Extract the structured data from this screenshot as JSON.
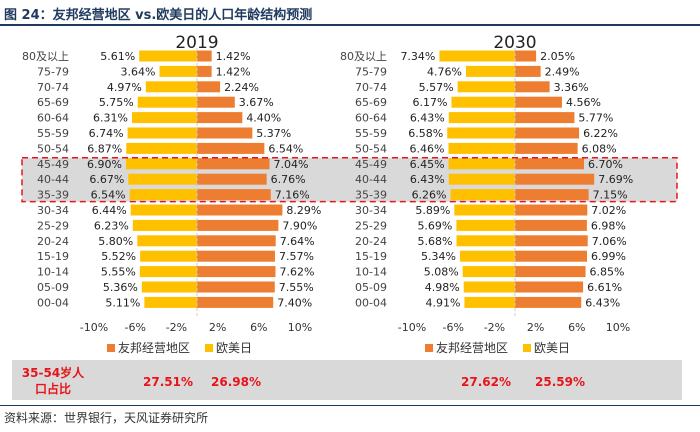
{
  "page": {
    "title": "图 24：友邦经营地区 vs.欧美日的人口年龄结构预测",
    "source": "资料来源：世界银行，天风证券研究所"
  },
  "colors": {
    "aia": "#ed7d31",
    "western": "#ffc000",
    "highlight": "#e8141b",
    "band": "#d9d9d9",
    "title": "#1f3a5f"
  },
  "chart_data": [
    {
      "type": "bar",
      "orientation": "horizontal",
      "title": "2019",
      "categories": [
        "80及以上",
        "75-79",
        "70-74",
        "65-69",
        "60-64",
        "55-59",
        "50-54",
        "45-49",
        "40-44",
        "35-39",
        "30-34",
        "25-29",
        "20-24",
        "15-19",
        "10-14",
        "05-09",
        "00-04"
      ],
      "series": [
        {
          "name": "友邦经营地区",
          "values": [
            1.42,
            1.42,
            2.24,
            3.67,
            4.4,
            5.37,
            6.54,
            7.04,
            6.76,
            7.16,
            8.29,
            7.9,
            7.64,
            7.57,
            7.62,
            7.55,
            7.4
          ]
        },
        {
          "name": "欧美日",
          "values": [
            5.61,
            3.64,
            4.97,
            5.75,
            6.31,
            6.74,
            6.87,
            6.9,
            6.67,
            6.54,
            6.44,
            6.23,
            5.8,
            5.52,
            5.55,
            5.36,
            5.11
          ]
        }
      ],
      "value_labels": {
        "aia": [
          "1.42%",
          "1.42%",
          "2.24%",
          "3.67%",
          "4.40%",
          "5.37%",
          "6.54%",
          "7.04%",
          "6.76%",
          "7.16%",
          "8.29%",
          "7.90%",
          "7.64%",
          "7.57%",
          "7.62%",
          "7.55%",
          "7.40%"
        ],
        "western": [
          "5.61%",
          "3.64%",
          "4.97%",
          "5.75%",
          "6.31%",
          "6.74%",
          "6.87%",
          "6.90%",
          "6.67%",
          "6.54%",
          "6.44%",
          "6.23%",
          "5.80%",
          "5.52%",
          "5.55%",
          "5.36%",
          "5.11%"
        ]
      },
      "xlim": [
        -10,
        10
      ],
      "xticks": [
        -10,
        -6,
        -2,
        2,
        6,
        10
      ],
      "xtick_labels": [
        "-10%",
        "-6%",
        "-2%",
        "2%",
        "6%",
        "10%"
      ]
    },
    {
      "type": "bar",
      "orientation": "horizontal",
      "title": "2030",
      "categories": [
        "80及以上",
        "75-79",
        "70-74",
        "65-69",
        "60-64",
        "55-59",
        "50-54",
        "45-49",
        "40-44",
        "35-39",
        "30-34",
        "25-29",
        "20-24",
        "15-19",
        "10-14",
        "05-09",
        "00-04"
      ],
      "series": [
        {
          "name": "友邦经营地区",
          "values": [
            2.05,
            2.49,
            3.36,
            4.56,
            5.77,
            6.22,
            6.08,
            6.7,
            7.69,
            7.15,
            7.02,
            6.98,
            7.06,
            6.99,
            6.85,
            6.61,
            6.43
          ]
        },
        {
          "name": "欧美日",
          "values": [
            7.34,
            4.76,
            5.57,
            6.17,
            6.43,
            6.58,
            6.46,
            6.45,
            6.43,
            6.26,
            5.89,
            5.69,
            5.68,
            5.34,
            5.08,
            4.98,
            4.91
          ]
        }
      ],
      "value_labels": {
        "aia": [
          "2.05%",
          "2.49%",
          "3.36%",
          "4.56%",
          "5.77%",
          "6.22%",
          "6.08%",
          "6.70%",
          "7.69%",
          "7.15%",
          "7.02%",
          "6.98%",
          "7.06%",
          "6.99%",
          "6.85%",
          "6.61%",
          "6.43%"
        ],
        "western": [
          "7.34%",
          "4.76%",
          "5.57%",
          "6.17%",
          "6.43%",
          "6.58%",
          "6.46%",
          "6.45%",
          "6.43%",
          "6.26%",
          "5.89%",
          "5.69%",
          "5.68%",
          "5.34%",
          "5.08%",
          "4.98%",
          "4.91%"
        ]
      },
      "xlim": [
        -10,
        10
      ],
      "xticks": [
        -10,
        -6,
        -2,
        2,
        6,
        10
      ],
      "xtick_labels": [
        "-10%",
        "-6%",
        "-2%",
        "2%",
        "6%",
        "10%"
      ]
    }
  ],
  "legend": {
    "aia": "友邦经营地区",
    "western": "欧美日"
  },
  "highlight_rows": [
    "45-49",
    "40-44",
    "35-39"
  ],
  "footer": {
    "label": "35-54岁人口占比",
    "p2019_aia": "27.51%",
    "p2019_western": "26.98%",
    "p2030_aia": "27.62%",
    "p2030_western": "25.59%"
  }
}
